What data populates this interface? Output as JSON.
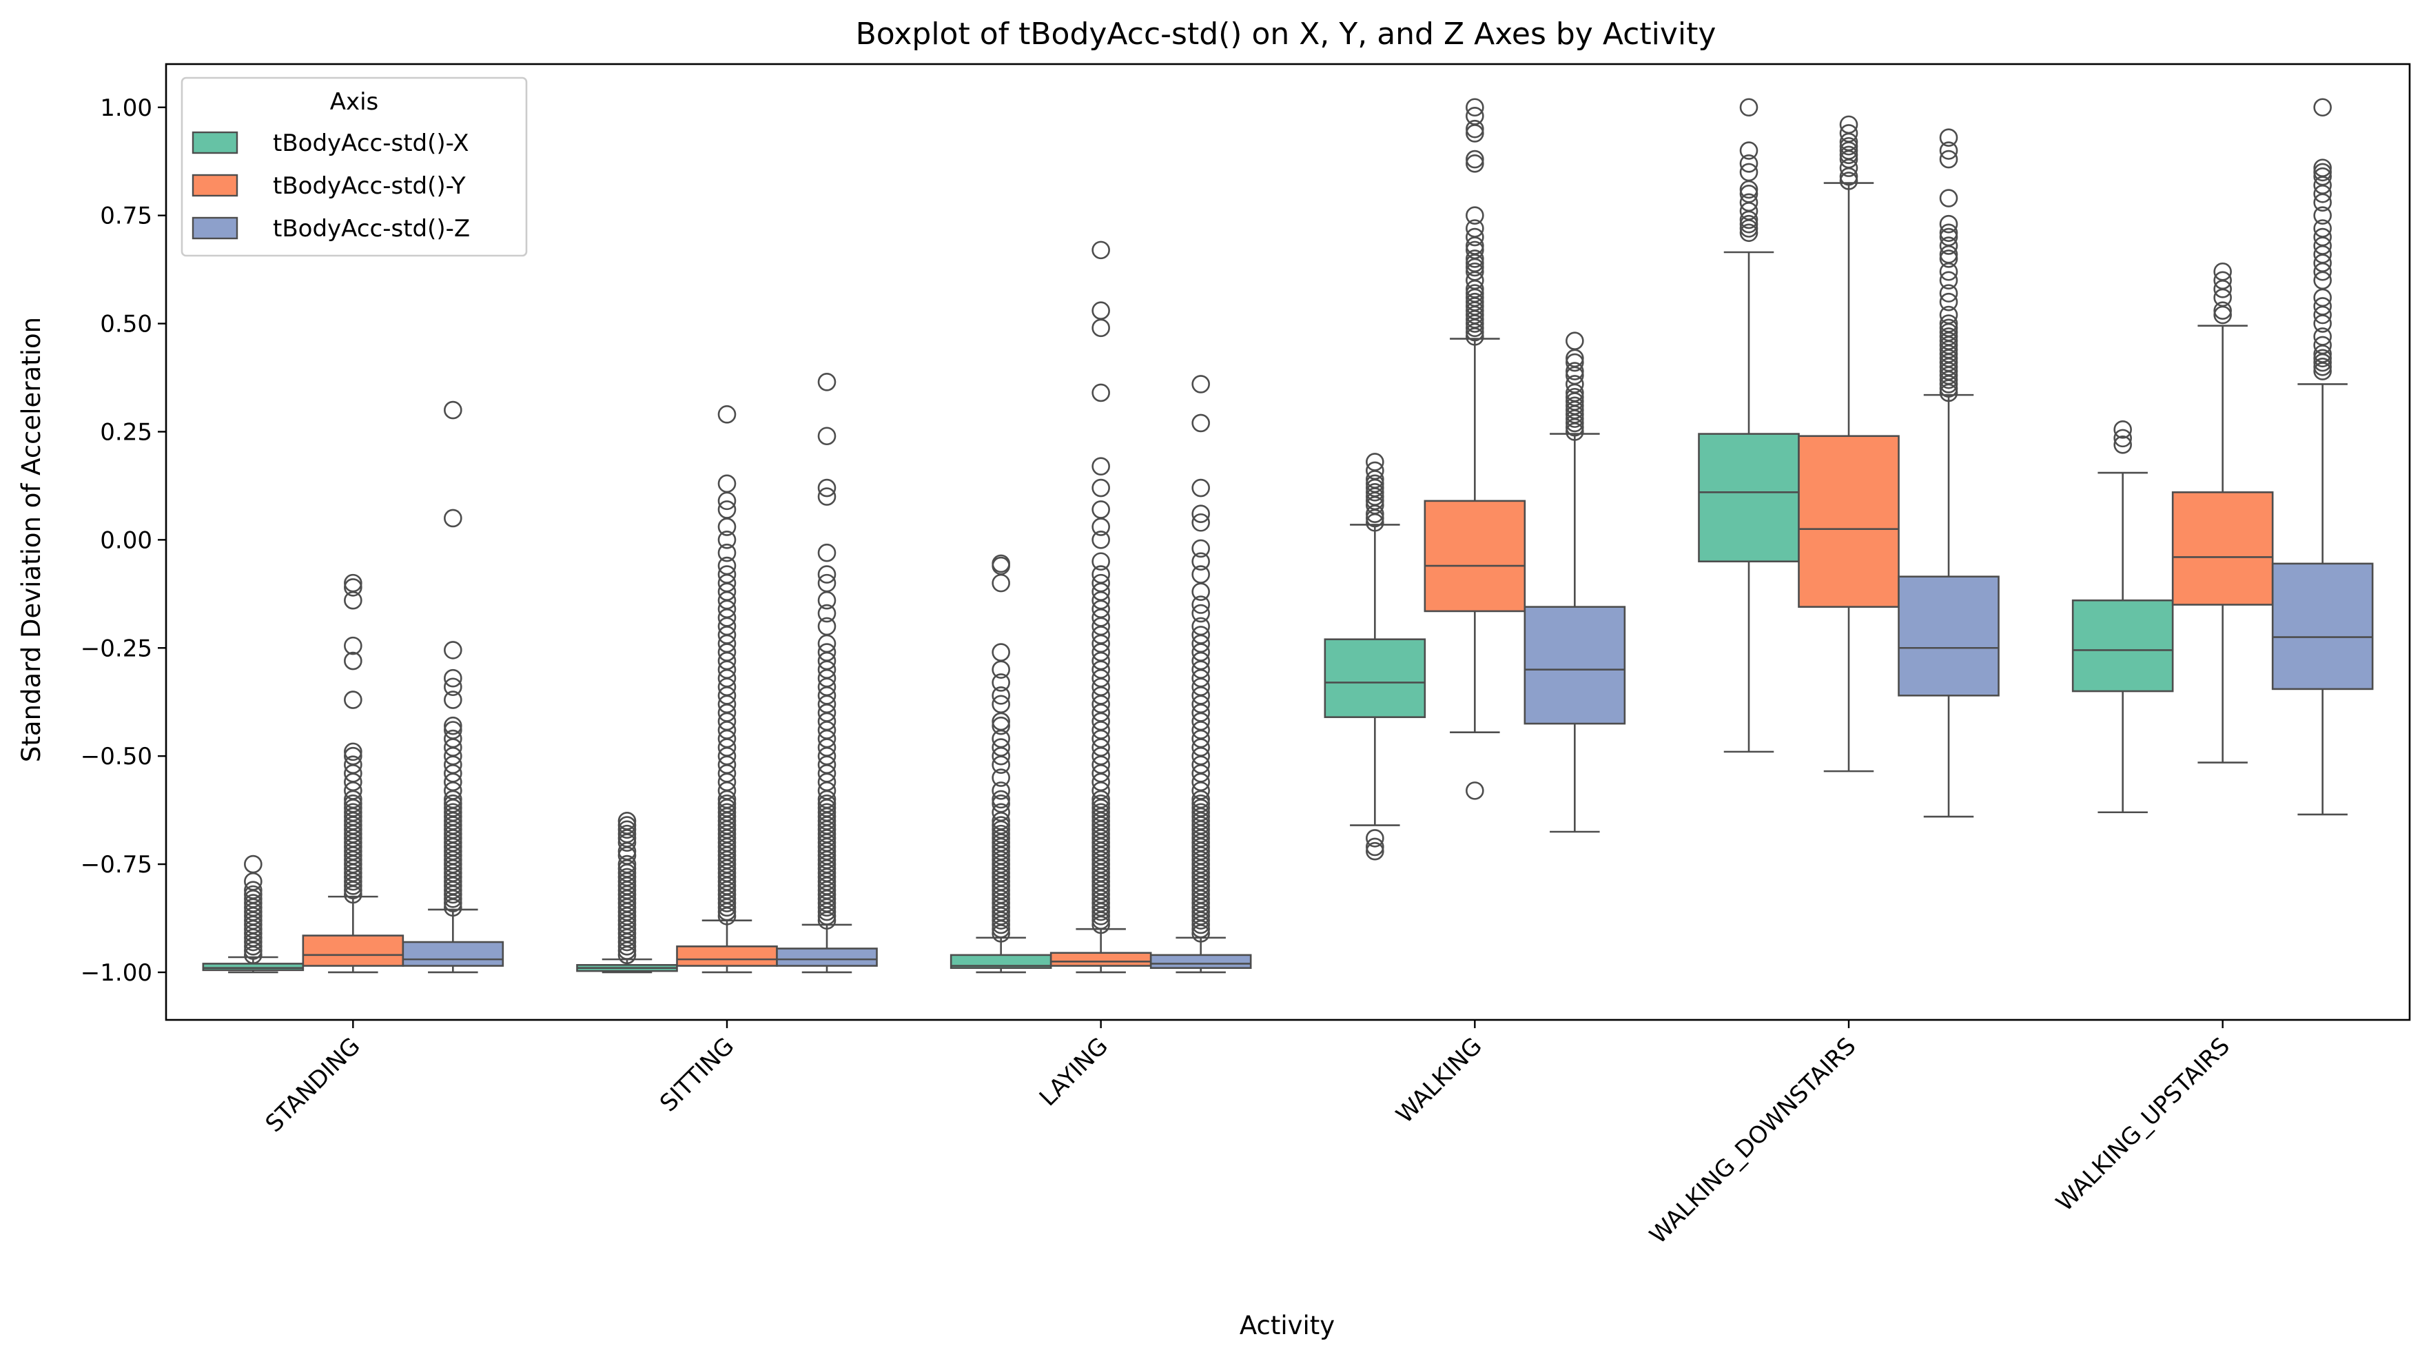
{
  "chart_data": {
    "type": "boxplot",
    "title": "Boxplot of tBodyAcc-std() on X, Y, and Z Axes by Activity",
    "xlabel": "Activity",
    "ylabel": "Standard Deviation of Acceleration",
    "ylim": [
      -1.11,
      1.1
    ],
    "yticks": [
      -1.0,
      -0.75,
      -0.5,
      -0.25,
      0.0,
      0.25,
      0.5,
      0.75,
      1.0
    ],
    "ytick_labels": [
      "−1.00",
      "−0.75",
      "−0.50",
      "−0.25",
      "0.00",
      "0.25",
      "0.50",
      "0.75",
      "1.00"
    ],
    "grid": false,
    "legend": {
      "title": "Axis",
      "placement": "top-left"
    },
    "categories": [
      "STANDING",
      "SITTING",
      "LAYING",
      "WALKING",
      "WALKING_DOWNSTAIRS",
      "WALKING_UPSTAIRS"
    ],
    "series": [
      {
        "name": "tBodyAcc-std()-X",
        "color": "#66c2a5",
        "boxes": [
          {
            "whislo": -1.0,
            "q1": -0.995,
            "med": -0.99,
            "q3": -0.98,
            "whishi": -0.965,
            "fliers": [
              -0.96,
              -0.95,
              -0.94,
              -0.93,
              -0.92,
              -0.91,
              -0.9,
              -0.89,
              -0.88,
              -0.87,
              -0.86,
              -0.85,
              -0.84,
              -0.83,
              -0.82,
              -0.81,
              -0.79,
              -0.75
            ]
          },
          {
            "whislo": -1.0,
            "q1": -0.997,
            "med": -0.99,
            "q3": -0.983,
            "whishi": -0.97,
            "fliers": [
              -0.96,
              -0.95,
              -0.94,
              -0.93,
              -0.92,
              -0.91,
              -0.9,
              -0.89,
              -0.88,
              -0.87,
              -0.86,
              -0.85,
              -0.84,
              -0.83,
              -0.82,
              -0.81,
              -0.8,
              -0.79,
              -0.78,
              -0.77,
              -0.76,
              -0.75,
              -0.73,
              -0.72,
              -0.7,
              -0.69,
              -0.68,
              -0.67,
              -0.66,
              -0.65
            ]
          },
          {
            "whislo": -1.0,
            "q1": -0.99,
            "med": -0.985,
            "q3": -0.96,
            "whishi": -0.92,
            "fliers": [
              -0.91,
              -0.9,
              -0.89,
              -0.88,
              -0.87,
              -0.86,
              -0.85,
              -0.84,
              -0.83,
              -0.82,
              -0.81,
              -0.8,
              -0.79,
              -0.78,
              -0.77,
              -0.76,
              -0.75,
              -0.74,
              -0.73,
              -0.72,
              -0.71,
              -0.7,
              -0.69,
              -0.68,
              -0.67,
              -0.66,
              -0.65,
              -0.63,
              -0.61,
              -0.6,
              -0.58,
              -0.55,
              -0.52,
              -0.5,
              -0.48,
              -0.46,
              -0.43,
              -0.42,
              -0.38,
              -0.36,
              -0.33,
              -0.3,
              -0.26,
              -0.1,
              -0.06,
              -0.055
            ]
          },
          {
            "whislo": -0.66,
            "q1": -0.41,
            "med": -0.33,
            "q3": -0.23,
            "whishi": 0.035,
            "fliers": [
              -0.72,
              -0.71,
              -0.69,
              0.04,
              0.05,
              0.06,
              0.08,
              0.09,
              0.1,
              0.11,
              0.12,
              0.13,
              0.14,
              0.16,
              0.18
            ]
          },
          {
            "whislo": -0.49,
            "q1": -0.05,
            "med": 0.11,
            "q3": 0.245,
            "whishi": 0.665,
            "fliers": [
              0.71,
              0.72,
              0.73,
              0.74,
              0.76,
              0.78,
              0.8,
              0.81,
              0.85,
              0.87,
              0.9,
              1.0
            ]
          },
          {
            "whislo": -0.63,
            "q1": -0.35,
            "med": -0.255,
            "q3": -0.14,
            "whishi": 0.155,
            "fliers": [
              0.22,
              0.235,
              0.255
            ]
          }
        ]
      },
      {
        "name": "tBodyAcc-std()-Y",
        "color": "#fc8d62",
        "boxes": [
          {
            "whislo": -1.0,
            "q1": -0.985,
            "med": -0.96,
            "q3": -0.915,
            "whishi": -0.825,
            "fliers": [
              -0.82,
              -0.81,
              -0.8,
              -0.79,
              -0.78,
              -0.77,
              -0.76,
              -0.75,
              -0.74,
              -0.73,
              -0.72,
              -0.71,
              -0.7,
              -0.69,
              -0.68,
              -0.67,
              -0.66,
              -0.65,
              -0.64,
              -0.63,
              -0.62,
              -0.61,
              -0.6,
              -0.58,
              -0.56,
              -0.54,
              -0.52,
              -0.5,
              -0.49,
              -0.37,
              -0.28,
              -0.245,
              -0.14,
              -0.11,
              -0.1
            ]
          },
          {
            "whislo": -1.0,
            "q1": -0.985,
            "med": -0.97,
            "q3": -0.94,
            "whishi": -0.88,
            "fliers": [
              -0.87,
              -0.86,
              -0.85,
              -0.84,
              -0.83,
              -0.82,
              -0.81,
              -0.8,
              -0.79,
              -0.78,
              -0.77,
              -0.76,
              -0.75,
              -0.74,
              -0.73,
              -0.72,
              -0.71,
              -0.7,
              -0.69,
              -0.68,
              -0.67,
              -0.66,
              -0.65,
              -0.64,
              -0.63,
              -0.62,
              -0.61,
              -0.6,
              -0.58,
              -0.56,
              -0.54,
              -0.52,
              -0.5,
              -0.48,
              -0.46,
              -0.44,
              -0.42,
              -0.4,
              -0.38,
              -0.36,
              -0.34,
              -0.32,
              -0.3,
              -0.28,
              -0.26,
              -0.24,
              -0.22,
              -0.2,
              -0.18,
              -0.16,
              -0.14,
              -0.12,
              -0.1,
              -0.08,
              -0.06,
              -0.03,
              0.0,
              0.03,
              0.07,
              0.09,
              0.13,
              0.29
            ]
          },
          {
            "whislo": -1.0,
            "q1": -0.985,
            "med": -0.975,
            "q3": -0.955,
            "whishi": -0.9,
            "fliers": [
              -0.89,
              -0.88,
              -0.87,
              -0.86,
              -0.85,
              -0.84,
              -0.83,
              -0.82,
              -0.81,
              -0.8,
              -0.79,
              -0.78,
              -0.77,
              -0.76,
              -0.75,
              -0.74,
              -0.73,
              -0.72,
              -0.71,
              -0.7,
              -0.69,
              -0.68,
              -0.67,
              -0.66,
              -0.65,
              -0.64,
              -0.63,
              -0.62,
              -0.61,
              -0.6,
              -0.58,
              -0.56,
              -0.54,
              -0.52,
              -0.5,
              -0.48,
              -0.46,
              -0.44,
              -0.42,
              -0.4,
              -0.38,
              -0.36,
              -0.34,
              -0.32,
              -0.3,
              -0.28,
              -0.26,
              -0.24,
              -0.22,
              -0.2,
              -0.18,
              -0.16,
              -0.14,
              -0.12,
              -0.1,
              -0.08,
              -0.05,
              0.0,
              0.03,
              0.07,
              0.12,
              0.17,
              0.34,
              0.49,
              0.53,
              0.67
            ]
          },
          {
            "whislo": -0.445,
            "q1": -0.165,
            "med": -0.06,
            "q3": 0.09,
            "whishi": 0.465,
            "fliers": [
              -0.58,
              0.47,
              0.48,
              0.49,
              0.5,
              0.51,
              0.52,
              0.53,
              0.54,
              0.55,
              0.56,
              0.57,
              0.58,
              0.6,
              0.62,
              0.63,
              0.64,
              0.65,
              0.67,
              0.68,
              0.7,
              0.72,
              0.75,
              0.87,
              0.88,
              0.94,
              0.95,
              0.98,
              1.0
            ]
          },
          {
            "whislo": -0.535,
            "q1": -0.155,
            "med": 0.025,
            "q3": 0.24,
            "whishi": 0.825,
            "fliers": [
              0.83,
              0.84,
              0.86,
              0.88,
              0.89,
              0.9,
              0.91,
              0.92,
              0.94,
              0.96
            ]
          },
          {
            "whislo": -0.515,
            "q1": -0.15,
            "med": -0.04,
            "q3": 0.11,
            "whishi": 0.495,
            "fliers": [
              0.52,
              0.53,
              0.56,
              0.58,
              0.6,
              0.62
            ]
          }
        ]
      },
      {
        "name": "tBodyAcc-std()-Z",
        "color": "#8da0cb",
        "boxes": [
          {
            "whislo": -1.0,
            "q1": -0.985,
            "med": -0.97,
            "q3": -0.93,
            "whishi": -0.855,
            "fliers": [
              -0.85,
              -0.84,
              -0.83,
              -0.82,
              -0.81,
              -0.8,
              -0.79,
              -0.78,
              -0.77,
              -0.76,
              -0.75,
              -0.74,
              -0.73,
              -0.72,
              -0.71,
              -0.7,
              -0.69,
              -0.68,
              -0.67,
              -0.66,
              -0.65,
              -0.64,
              -0.63,
              -0.62,
              -0.61,
              -0.6,
              -0.58,
              -0.56,
              -0.54,
              -0.52,
              -0.5,
              -0.48,
              -0.46,
              -0.44,
              -0.43,
              -0.37,
              -0.34,
              -0.32,
              -0.255,
              0.05,
              0.3
            ]
          },
          {
            "whislo": -1.0,
            "q1": -0.985,
            "med": -0.97,
            "q3": -0.945,
            "whishi": -0.89,
            "fliers": [
              -0.88,
              -0.87,
              -0.86,
              -0.85,
              -0.84,
              -0.83,
              -0.82,
              -0.81,
              -0.8,
              -0.79,
              -0.78,
              -0.77,
              -0.76,
              -0.75,
              -0.74,
              -0.73,
              -0.72,
              -0.71,
              -0.7,
              -0.69,
              -0.68,
              -0.67,
              -0.66,
              -0.65,
              -0.64,
              -0.63,
              -0.62,
              -0.61,
              -0.6,
              -0.58,
              -0.56,
              -0.54,
              -0.52,
              -0.5,
              -0.48,
              -0.46,
              -0.44,
              -0.42,
              -0.4,
              -0.38,
              -0.36,
              -0.34,
              -0.32,
              -0.3,
              -0.28,
              -0.26,
              -0.24,
              -0.2,
              -0.17,
              -0.14,
              -0.1,
              -0.08,
              -0.03,
              0.1,
              0.12,
              0.24,
              0.365
            ]
          },
          {
            "whislo": -1.0,
            "q1": -0.99,
            "med": -0.98,
            "q3": -0.96,
            "whishi": -0.92,
            "fliers": [
              -0.91,
              -0.9,
              -0.89,
              -0.88,
              -0.87,
              -0.86,
              -0.85,
              -0.84,
              -0.83,
              -0.82,
              -0.81,
              -0.8,
              -0.79,
              -0.78,
              -0.77,
              -0.76,
              -0.75,
              -0.74,
              -0.73,
              -0.72,
              -0.71,
              -0.7,
              -0.69,
              -0.68,
              -0.67,
              -0.66,
              -0.65,
              -0.64,
              -0.63,
              -0.62,
              -0.61,
              -0.6,
              -0.58,
              -0.56,
              -0.54,
              -0.52,
              -0.5,
              -0.48,
              -0.46,
              -0.44,
              -0.42,
              -0.4,
              -0.38,
              -0.36,
              -0.34,
              -0.32,
              -0.3,
              -0.28,
              -0.26,
              -0.24,
              -0.22,
              -0.2,
              -0.17,
              -0.15,
              -0.12,
              -0.08,
              -0.05,
              -0.02,
              0.04,
              0.06,
              0.12,
              0.27,
              0.36
            ]
          },
          {
            "whislo": -0.675,
            "q1": -0.425,
            "med": -0.3,
            "q3": -0.155,
            "whishi": 0.245,
            "fliers": [
              0.25,
              0.26,
              0.27,
              0.28,
              0.29,
              0.3,
              0.31,
              0.32,
              0.33,
              0.34,
              0.36,
              0.38,
              0.39,
              0.41,
              0.42,
              0.46
            ]
          },
          {
            "whislo": -0.64,
            "q1": -0.36,
            "med": -0.25,
            "q3": -0.085,
            "whishi": 0.335,
            "fliers": [
              0.34,
              0.35,
              0.36,
              0.37,
              0.38,
              0.39,
              0.4,
              0.41,
              0.42,
              0.43,
              0.44,
              0.45,
              0.46,
              0.47,
              0.48,
              0.49,
              0.5,
              0.52,
              0.55,
              0.57,
              0.6,
              0.62,
              0.65,
              0.66,
              0.68,
              0.7,
              0.71,
              0.73,
              0.79,
              0.88,
              0.9,
              0.93
            ]
          },
          {
            "whislo": -0.635,
            "q1": -0.345,
            "med": -0.225,
            "q3": -0.055,
            "whishi": 0.36,
            "fliers": [
              0.39,
              0.4,
              0.41,
              0.42,
              0.43,
              0.45,
              0.47,
              0.5,
              0.52,
              0.54,
              0.56,
              0.6,
              0.62,
              0.64,
              0.66,
              0.68,
              0.7,
              0.72,
              0.75,
              0.78,
              0.8,
              0.82,
              0.84,
              0.85,
              0.86,
              1.0
            ]
          }
        ]
      }
    ]
  }
}
